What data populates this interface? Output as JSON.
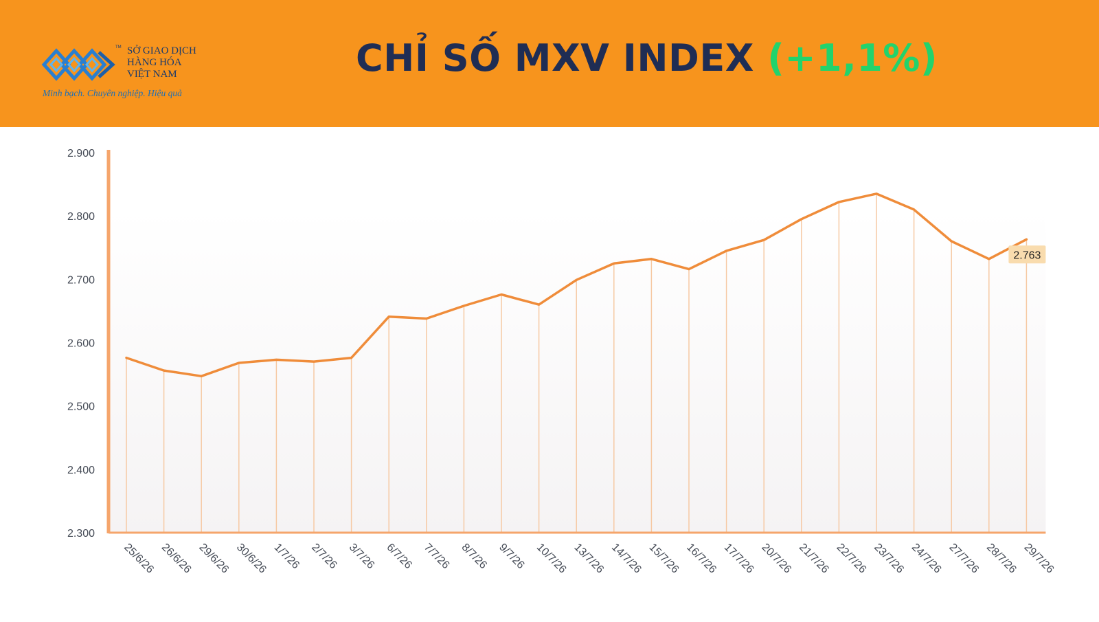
{
  "header": {
    "logo": {
      "icon": "mxv-logo-mark",
      "tm": "TM",
      "name_line1": "SỞ GIAO DỊCH",
      "name_line2": "HÀNG HÓA",
      "name_line3": "VIỆT NAM",
      "slogan": "Minh bạch. Chuyên nghiệp. Hiệu quả"
    },
    "title": "CHỈ SỐ MXV INDEX",
    "change": "(+1,1%)",
    "colors": {
      "background": "#f7941d",
      "title": "#1f2d54",
      "change": "#22d36c"
    }
  },
  "chart_data": {
    "type": "line",
    "title": "CHỈ SỐ MXV INDEX (+1,1%)",
    "xlabel": "",
    "ylabel": "",
    "ylim": [
      2300,
      2900
    ],
    "yticks": [
      2900,
      2800,
      2700,
      2600,
      2500,
      2400,
      2300
    ],
    "ytick_labels": [
      "2.900",
      "2.800",
      "2.700",
      "2.600",
      "2.500",
      "2.400",
      "2.300"
    ],
    "categories": [
      "25/6/26",
      "26/6/26",
      "29/6/26",
      "30/6/26",
      "1/7/26",
      "2/7/26",
      "3/7/26",
      "6/7/26",
      "7/7/26",
      "8/7/26",
      "9/7/26",
      "10/7/26",
      "13/7/26",
      "14/7/26",
      "15/7/26",
      "16/7/26",
      "17/7/26",
      "20/7/26",
      "21/7/26",
      "22/7/26",
      "23/7/26",
      "24/7/26",
      "27/7/26",
      "28/7/26",
      "29/7/26"
    ],
    "values": [
      2576,
      2556,
      2547,
      2568,
      2573,
      2570,
      2576,
      2641,
      2638,
      2658,
      2676,
      2660,
      2699,
      2725,
      2732,
      2716,
      2745,
      2762,
      2795,
      2822,
      2835,
      2810,
      2760,
      2732,
      2763
    ],
    "last_value_label": "2.763",
    "grid": "vertical drop lines at each point",
    "colors": {
      "line": "#ef8c3a",
      "drop_lines": "#f6c9a3",
      "axis": "#f5a56b",
      "label_bg": "#f9dcae"
    }
  }
}
